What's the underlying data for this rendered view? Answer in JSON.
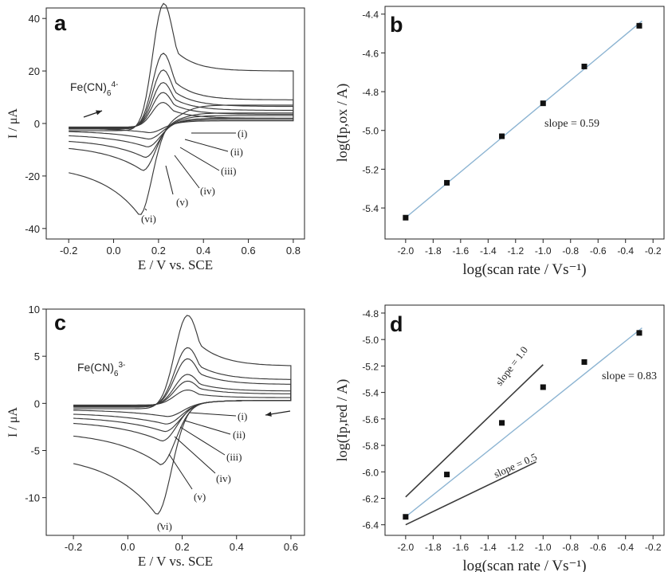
{
  "chart_data": [
    {
      "panel": "a",
      "type": "line",
      "xlabel": "E / V vs. SCE",
      "ylabel": "I / μA",
      "xlim": [
        -0.3,
        0.85
      ],
      "ylim": [
        -44,
        44
      ],
      "xticks": [
        -0.2,
        0.0,
        0.2,
        0.4,
        0.6,
        0.8
      ],
      "yticks": [
        -40,
        -20,
        0,
        20,
        40
      ],
      "grid": false,
      "species_label": {
        "base": "Fe(CN)",
        "sub": "6",
        "sup": "4-"
      },
      "curve_labels": [
        "(i)",
        "(ii)",
        "(iii)",
        "(iv)",
        "(v)",
        "(vi)"
      ],
      "series": [
        {
          "name": "(i)",
          "peak_ox": 7,
          "peak_red": -3.5,
          "E_red": 0.16,
          "end_forward": 2,
          "end_reverse": 1
        },
        {
          "name": "(ii)",
          "peak_ox": 10,
          "peak_red": -6,
          "E_red": 0.155,
          "end_forward": 3.5,
          "end_reverse": 1.5
        },
        {
          "name": "(iii)",
          "peak_ox": 13,
          "peak_red": -9,
          "E_red": 0.15,
          "end_forward": 5,
          "end_reverse": 2
        },
        {
          "name": "(iv)",
          "peak_ox": 17,
          "peak_red": -13,
          "E_red": 0.14,
          "end_forward": 6.5,
          "end_reverse": 3
        },
        {
          "name": "(v)",
          "peak_ox": 22,
          "peak_red": -18,
          "E_red": 0.13,
          "end_forward": 9,
          "end_reverse": 4
        },
        {
          "name": "(vi)",
          "peak_ox": 35,
          "peak_red": -35,
          "E_red": 0.115,
          "end_forward": 20,
          "end_reverse": 7
        }
      ]
    },
    {
      "panel": "b",
      "type": "scatter",
      "xlabel": "log(scan rate / Vs⁻¹)",
      "ylabel": "log(Ip,ox / A)",
      "xlim": [
        -2.15,
        -0.12
      ],
      "ylim": [
        -5.56,
        -4.36
      ],
      "xticks": [
        -2.0,
        -1.8,
        -1.6,
        -1.4,
        -1.2,
        -1.0,
        -0.8,
        -0.6,
        -0.4,
        -0.2
      ],
      "yticks": [
        -5.4,
        -5.2,
        -5.0,
        -4.8,
        -4.6,
        -4.4
      ],
      "grid": false,
      "points": [
        {
          "x": -2.0,
          "y": -5.45
        },
        {
          "x": -1.7,
          "y": -5.27
        },
        {
          "x": -1.3,
          "y": -5.03
        },
        {
          "x": -1.0,
          "y": -4.86
        },
        {
          "x": -0.7,
          "y": -4.67
        },
        {
          "x": -0.3,
          "y": -4.46
        }
      ],
      "fit": {
        "slope": 0.59,
        "x_range": [
          -2.0,
          -0.28
        ],
        "label": "slope = 0.59"
      }
    },
    {
      "panel": "c",
      "type": "line",
      "xlabel": "E / V vs. SCE",
      "ylabel": "I / μA",
      "xlim": [
        -0.3,
        0.65
      ],
      "ylim": [
        -14,
        10
      ],
      "xticks": [
        -0.2,
        0.0,
        0.2,
        0.4,
        0.6
      ],
      "yticks": [
        -10,
        -5,
        0,
        5,
        10
      ],
      "grid": false,
      "species_label": {
        "base": "Fe(CN)",
        "sub": "6",
        "sup": "3-"
      },
      "curve_labels": [
        "(i)",
        "(ii)",
        "(iii)",
        "(iv)",
        "(v)",
        "(vi)"
      ],
      "series": [
        {
          "name": "(i)",
          "peak_ox": 1.2,
          "peak_red": -1.4,
          "E_red": 0.145
        },
        {
          "name": "(ii)",
          "peak_ox": 2,
          "peak_red": -2.2,
          "E_red": 0.14
        },
        {
          "name": "(iii)",
          "peak_ox": 2.6,
          "peak_red": -3,
          "E_red": 0.135
        },
        {
          "name": "(iv)",
          "peak_ox": 4,
          "peak_red": -4,
          "E_red": 0.125
        },
        {
          "name": "(v)",
          "peak_ox": 5,
          "peak_red": -6.5,
          "E_red": 0.12
        },
        {
          "name": "(vi)",
          "peak_ox": 7.9,
          "peak_red": -11.8,
          "E_red": 0.105
        }
      ]
    },
    {
      "panel": "d",
      "type": "scatter",
      "xlabel": "log(scan rate / Vs⁻¹)",
      "ylabel": "log(Ip,red / A)",
      "xlim": [
        -2.15,
        -0.12
      ],
      "ylim": [
        -6.48,
        -4.74
      ],
      "xticks": [
        -2.0,
        -1.8,
        -1.6,
        -1.4,
        -1.2,
        -1.0,
        -0.8,
        -0.6,
        -0.4,
        -0.2
      ],
      "yticks": [
        -6.4,
        -6.2,
        -6.0,
        -5.8,
        -5.6,
        -5.4,
        -5.2,
        -5.0,
        -4.8
      ],
      "grid": false,
      "points": [
        {
          "x": -2.0,
          "y": -6.34
        },
        {
          "x": -1.7,
          "y": -6.02
        },
        {
          "x": -1.3,
          "y": -5.63
        },
        {
          "x": -1.0,
          "y": -5.36
        },
        {
          "x": -0.7,
          "y": -5.17
        },
        {
          "x": -0.3,
          "y": -4.95
        }
      ],
      "fit": {
        "slope": 0.83,
        "x_range": [
          -2.0,
          -0.28
        ],
        "label": "slope = 0.83"
      },
      "reference_lines": [
        {
          "slope": 1.0,
          "x_range": [
            -2.0,
            -1.0
          ],
          "y_start": -6.19,
          "label": "slope = 1.0"
        },
        {
          "slope": 0.5,
          "x_range": [
            -2.0,
            -1.05
          ],
          "y_start": -6.4,
          "label": "slope = 0.5"
        }
      ]
    }
  ]
}
